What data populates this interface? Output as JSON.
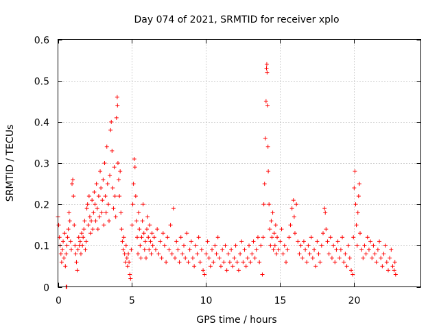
{
  "chart_data": {
    "type": "scatter",
    "title": "Day 074 of 2021, SRMTID for receiver xplo",
    "xlabel": "GPS time / hours",
    "ylabel": "SRMTID / TECUs",
    "xlim": [
      0,
      24.5
    ],
    "ylim": [
      0,
      0.6
    ],
    "x_ticks": [
      0,
      5,
      10,
      15,
      20
    ],
    "x_tick_labels": [
      "0",
      "5",
      "10",
      "15",
      "20"
    ],
    "y_ticks": [
      0,
      0.1,
      0.2,
      0.3,
      0.4,
      0.5,
      0.6
    ],
    "y_tick_labels": [
      "0",
      "0.1",
      "0.2",
      "0.3",
      "0.4",
      "0.5",
      "0.6"
    ],
    "grid": true,
    "marker": "+",
    "series": [
      {
        "name": "SRMTID",
        "color": "#ff0000",
        "points": [
          [
            0.0,
            0.17
          ],
          [
            0.05,
            0.15
          ],
          [
            0.1,
            0.12
          ],
          [
            0.15,
            0.1
          ],
          [
            0.2,
            0.08
          ],
          [
            0.25,
            0.06
          ],
          [
            0.3,
            0.09
          ],
          [
            0.35,
            0.11
          ],
          [
            0.4,
            0.07
          ],
          [
            0.45,
            0.13
          ],
          [
            0.5,
            0.05
          ],
          [
            0.55,
            0.08
          ],
          [
            0.6,
            0.1
          ],
          [
            0.65,
            0.12
          ],
          [
            0.7,
            0.14
          ],
          [
            0.75,
            0.18
          ],
          [
            0.8,
            0.16
          ],
          [
            0.85,
            0.11
          ],
          [
            0.9,
            0.09
          ],
          [
            0.95,
            0.25
          ],
          [
            1.0,
            0.26
          ],
          [
            1.05,
            0.22
          ],
          [
            1.1,
            0.15
          ],
          [
            1.15,
            0.1
          ],
          [
            1.2,
            0.08
          ],
          [
            1.25,
            0.06
          ],
          [
            1.3,
            0.04
          ],
          [
            1.35,
            0.09
          ],
          [
            1.4,
            0.12
          ],
          [
            1.45,
            0.1
          ],
          [
            1.5,
            0.11
          ],
          [
            1.55,
            0.08
          ],
          [
            1.6,
            0.13
          ],
          [
            1.65,
            0.1
          ],
          [
            1.7,
            0.12
          ],
          [
            1.75,
            0.14
          ],
          [
            1.8,
            0.16
          ],
          [
            1.85,
            0.09
          ],
          [
            1.9,
            0.11
          ],
          [
            1.95,
            0.19
          ],
          [
            2.0,
            0.2
          ],
          [
            2.05,
            0.15
          ],
          [
            2.1,
            0.22
          ],
          [
            2.15,
            0.17
          ],
          [
            2.2,
            0.13
          ],
          [
            2.25,
            0.16
          ],
          [
            2.3,
            0.21
          ],
          [
            2.35,
            0.14
          ],
          [
            2.4,
            0.18
          ],
          [
            2.45,
            0.23
          ],
          [
            2.5,
            0.2
          ],
          [
            2.55,
            0.16
          ],
          [
            2.6,
            0.25
          ],
          [
            2.65,
            0.19
          ],
          [
            2.7,
            0.14
          ],
          [
            2.75,
            0.22
          ],
          [
            2.8,
            0.17
          ],
          [
            2.85,
            0.28
          ],
          [
            2.9,
            0.24
          ],
          [
            2.95,
            0.18
          ],
          [
            3.0,
            0.21
          ],
          [
            3.05,
            0.26
          ],
          [
            3.1,
            0.15
          ],
          [
            3.15,
            0.3
          ],
          [
            3.2,
            0.22
          ],
          [
            3.25,
            0.18
          ],
          [
            3.3,
            0.34
          ],
          [
            3.35,
            0.25
          ],
          [
            3.4,
            0.2
          ],
          [
            3.45,
            0.16
          ],
          [
            3.5,
            0.27
          ],
          [
            3.55,
            0.38
          ],
          [
            3.6,
            0.4
          ],
          [
            3.65,
            0.33
          ],
          [
            3.7,
            0.24
          ],
          [
            3.75,
            0.19
          ],
          [
            3.8,
            0.29
          ],
          [
            3.85,
            0.22
          ],
          [
            3.9,
            0.17
          ],
          [
            3.95,
            0.41
          ],
          [
            4.0,
            0.46
          ],
          [
            4.02,
            0.44
          ],
          [
            4.05,
            0.3
          ],
          [
            4.1,
            0.26
          ],
          [
            4.15,
            0.22
          ],
          [
            4.2,
            0.28
          ],
          [
            4.25,
            0.18
          ],
          [
            4.3,
            0.14
          ],
          [
            4.35,
            0.11
          ],
          [
            4.4,
            0.09
          ],
          [
            4.45,
            0.12
          ],
          [
            4.5,
            0.08
          ],
          [
            4.55,
            0.06
          ],
          [
            4.6,
            0.1
          ],
          [
            4.65,
            0.07
          ],
          [
            4.7,
            0.05
          ],
          [
            4.75,
            0.08
          ],
          [
            4.8,
            0.06
          ],
          [
            4.85,
            0.03
          ],
          [
            4.9,
            0.02
          ],
          [
            4.95,
            0.09
          ],
          [
            5.0,
            0.15
          ],
          [
            5.05,
            0.2
          ],
          [
            5.1,
            0.25
          ],
          [
            5.15,
            0.31
          ],
          [
            5.2,
            0.29
          ],
          [
            5.25,
            0.22
          ],
          [
            5.3,
            0.16
          ],
          [
            5.35,
            0.12
          ],
          [
            5.4,
            0.08
          ],
          [
            5.45,
            0.18
          ],
          [
            5.5,
            0.14
          ],
          [
            5.55,
            0.1
          ],
          [
            5.6,
            0.07
          ],
          [
            5.65,
            0.12
          ],
          [
            5.7,
            0.16
          ],
          [
            5.75,
            0.2
          ],
          [
            5.8,
            0.13
          ],
          [
            5.85,
            0.09
          ],
          [
            5.9,
            0.11
          ],
          [
            5.95,
            0.07
          ],
          [
            6.0,
            0.14
          ],
          [
            6.05,
            0.17
          ],
          [
            6.1,
            0.12
          ],
          [
            6.15,
            0.09
          ],
          [
            6.2,
            0.15
          ],
          [
            6.25,
            0.11
          ],
          [
            6.3,
            0.08
          ],
          [
            6.35,
            0.13
          ],
          [
            6.4,
            0.1
          ],
          [
            6.5,
            0.12
          ],
          [
            6.6,
            0.09
          ],
          [
            6.7,
            0.14
          ],
          [
            6.8,
            0.08
          ],
          [
            6.9,
            0.11
          ],
          [
            7.0,
            0.07
          ],
          [
            7.1,
            0.13
          ],
          [
            7.2,
            0.1
          ],
          [
            7.3,
            0.06
          ],
          [
            7.4,
            0.12
          ],
          [
            7.5,
            0.09
          ],
          [
            7.6,
            0.15
          ],
          [
            7.7,
            0.08
          ],
          [
            7.8,
            0.19
          ],
          [
            7.9,
            0.07
          ],
          [
            8.0,
            0.11
          ],
          [
            8.1,
            0.09
          ],
          [
            8.2,
            0.06
          ],
          [
            8.3,
            0.12
          ],
          [
            8.4,
            0.08
          ],
          [
            8.5,
            0.1
          ],
          [
            8.6,
            0.07
          ],
          [
            8.7,
            0.13
          ],
          [
            8.8,
            0.06
          ],
          [
            8.9,
            0.09
          ],
          [
            9.0,
            0.11
          ],
          [
            9.1,
            0.07
          ],
          [
            9.2,
            0.05
          ],
          [
            9.3,
            0.1
          ],
          [
            9.4,
            0.08
          ],
          [
            9.5,
            0.12
          ],
          [
            9.6,
            0.06
          ],
          [
            9.7,
            0.09
          ],
          [
            9.8,
            0.04
          ],
          [
            9.9,
            0.03
          ],
          [
            10.0,
            0.08
          ],
          [
            10.1,
            0.11
          ],
          [
            10.2,
            0.07
          ],
          [
            10.3,
            0.05
          ],
          [
            10.4,
            0.09
          ],
          [
            10.5,
            0.06
          ],
          [
            10.6,
            0.1
          ],
          [
            10.7,
            0.08
          ],
          [
            10.8,
            0.12
          ],
          [
            10.9,
            0.07
          ],
          [
            11.0,
            0.05
          ],
          [
            11.1,
            0.09
          ],
          [
            11.2,
            0.06
          ],
          [
            11.3,
            0.1
          ],
          [
            11.4,
            0.04
          ],
          [
            11.5,
            0.08
          ],
          [
            11.6,
            0.06
          ],
          [
            11.7,
            0.09
          ],
          [
            11.8,
            0.05
          ],
          [
            11.9,
            0.07
          ],
          [
            12.0,
            0.1
          ],
          [
            12.1,
            0.06
          ],
          [
            12.2,
            0.04
          ],
          [
            12.3,
            0.08
          ],
          [
            12.4,
            0.11
          ],
          [
            12.5,
            0.06
          ],
          [
            12.6,
            0.09
          ],
          [
            12.7,
            0.05
          ],
          [
            12.8,
            0.07
          ],
          [
            12.9,
            0.1
          ],
          [
            13.0,
            0.06
          ],
          [
            13.1,
            0.08
          ],
          [
            13.2,
            0.11
          ],
          [
            13.3,
            0.07
          ],
          [
            13.4,
            0.09
          ],
          [
            13.5,
            0.12
          ],
          [
            13.6,
            0.06
          ],
          [
            13.7,
            0.1
          ],
          [
            13.8,
            0.03
          ],
          [
            13.85,
            0.12
          ],
          [
            13.9,
            0.2
          ],
          [
            13.95,
            0.25
          ],
          [
            14.0,
            0.36
          ],
          [
            14.05,
            0.45
          ],
          [
            14.08,
            0.53
          ],
          [
            14.1,
            0.54
          ],
          [
            14.12,
            0.52
          ],
          [
            14.15,
            0.44
          ],
          [
            14.18,
            0.34
          ],
          [
            14.2,
            0.28
          ],
          [
            14.25,
            0.2
          ],
          [
            14.3,
            0.14
          ],
          [
            14.35,
            0.1
          ],
          [
            14.4,
            0.16
          ],
          [
            14.45,
            0.12
          ],
          [
            14.5,
            0.18
          ],
          [
            14.55,
            0.09
          ],
          [
            14.6,
            0.13
          ],
          [
            14.65,
            0.1
          ],
          [
            14.7,
            0.15
          ],
          [
            14.75,
            0.08
          ],
          [
            14.8,
            0.12
          ],
          [
            14.9,
            0.09
          ],
          [
            15.0,
            0.11
          ],
          [
            15.1,
            0.14
          ],
          [
            15.2,
            0.08
          ],
          [
            15.3,
            0.1
          ],
          [
            15.4,
            0.06
          ],
          [
            15.5,
            0.09
          ],
          [
            15.6,
            0.12
          ],
          [
            15.7,
            0.15
          ],
          [
            15.8,
            0.19
          ],
          [
            15.9,
            0.21
          ],
          [
            15.95,
            0.17
          ],
          [
            16.0,
            0.13
          ],
          [
            16.1,
            0.2
          ],
          [
            16.2,
            0.11
          ],
          [
            16.3,
            0.08
          ],
          [
            16.4,
            0.1
          ],
          [
            16.5,
            0.07
          ],
          [
            16.6,
            0.11
          ],
          [
            16.7,
            0.09
          ],
          [
            16.8,
            0.06
          ],
          [
            16.9,
            0.1
          ],
          [
            17.0,
            0.08
          ],
          [
            17.1,
            0.12
          ],
          [
            17.2,
            0.07
          ],
          [
            17.3,
            0.09
          ],
          [
            17.4,
            0.05
          ],
          [
            17.5,
            0.11
          ],
          [
            17.6,
            0.08
          ],
          [
            17.7,
            0.06
          ],
          [
            17.8,
            0.1
          ],
          [
            17.9,
            0.13
          ],
          [
            18.0,
            0.19
          ],
          [
            18.05,
            0.18
          ],
          [
            18.1,
            0.14
          ],
          [
            18.2,
            0.11
          ],
          [
            18.3,
            0.08
          ],
          [
            18.4,
            0.12
          ],
          [
            18.5,
            0.07
          ],
          [
            18.6,
            0.1
          ],
          [
            18.7,
            0.06
          ],
          [
            18.8,
            0.09
          ],
          [
            18.9,
            0.11
          ],
          [
            19.0,
            0.07
          ],
          [
            19.1,
            0.09
          ],
          [
            19.2,
            0.12
          ],
          [
            19.3,
            0.06
          ],
          [
            19.4,
            0.08
          ],
          [
            19.5,
            0.05
          ],
          [
            19.6,
            0.1
          ],
          [
            19.7,
            0.07
          ],
          [
            19.8,
            0.04
          ],
          [
            19.9,
            0.03
          ],
          [
            19.95,
            0.12
          ],
          [
            20.0,
            0.24
          ],
          [
            20.05,
            0.28
          ],
          [
            20.1,
            0.2
          ],
          [
            20.15,
            0.15
          ],
          [
            20.2,
            0.1
          ],
          [
            20.25,
            0.18
          ],
          [
            20.3,
            0.22
          ],
          [
            20.35,
            0.25
          ],
          [
            20.4,
            0.13
          ],
          [
            20.5,
            0.09
          ],
          [
            20.6,
            0.07
          ],
          [
            20.7,
            0.1
          ],
          [
            20.8,
            0.08
          ],
          [
            20.9,
            0.12
          ],
          [
            21.0,
            0.09
          ],
          [
            21.1,
            0.11
          ],
          [
            21.2,
            0.07
          ],
          [
            21.3,
            0.1
          ],
          [
            21.4,
            0.08
          ],
          [
            21.5,
            0.06
          ],
          [
            21.6,
            0.09
          ],
          [
            21.7,
            0.11
          ],
          [
            21.8,
            0.07
          ],
          [
            21.9,
            0.05
          ],
          [
            22.0,
            0.08
          ],
          [
            22.1,
            0.1
          ],
          [
            22.2,
            0.06
          ],
          [
            22.3,
            0.04
          ],
          [
            22.4,
            0.07
          ],
          [
            22.5,
            0.09
          ],
          [
            22.6,
            0.05
          ],
          [
            22.7,
            0.04
          ],
          [
            22.75,
            0.06
          ],
          [
            22.8,
            0.03
          ],
          [
            0.55,
            0.0
          ],
          [
            0.6,
            0.0
          ]
        ]
      }
    ]
  }
}
